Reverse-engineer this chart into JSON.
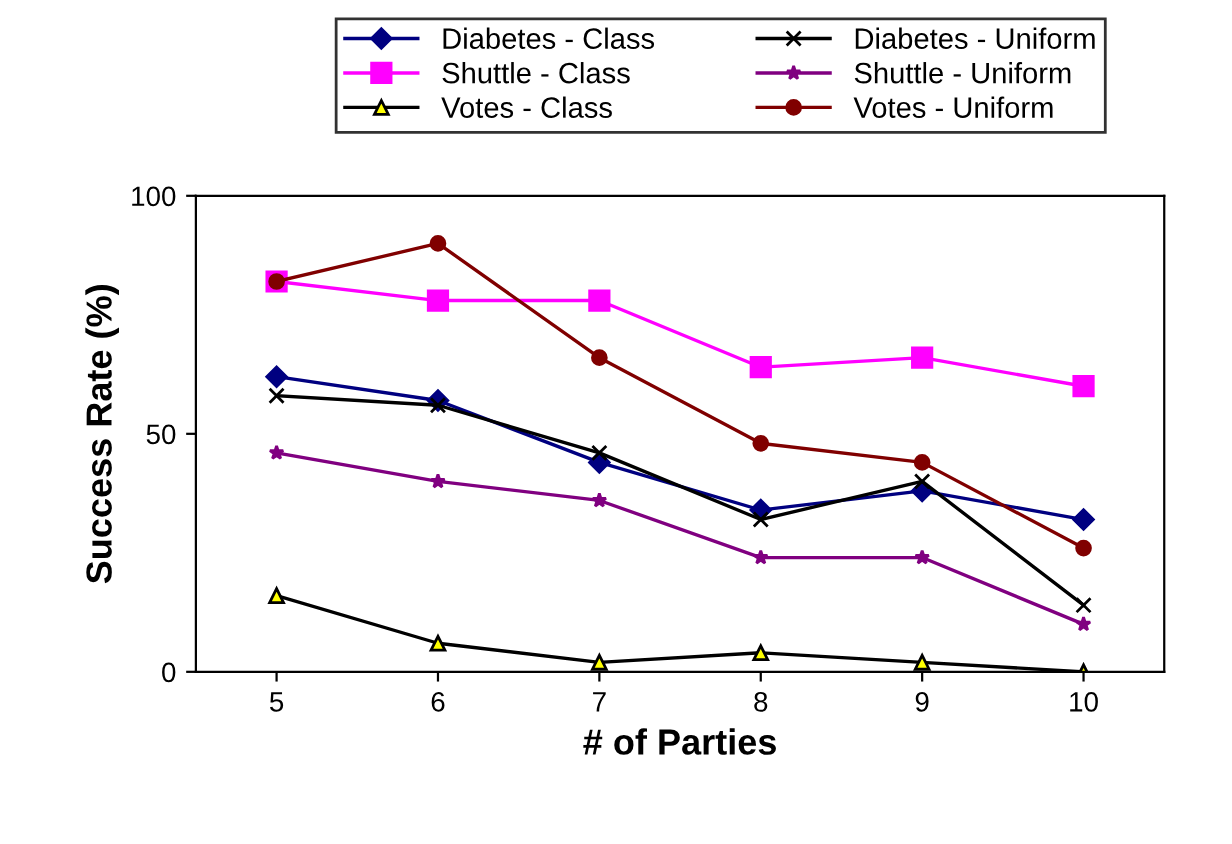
{
  "chart_data": {
    "type": "line",
    "xlabel": "# of Parties",
    "ylabel": "Success Rate (%)",
    "categories": [
      "5",
      "6",
      "7",
      "8",
      "9",
      "10"
    ],
    "ylim": [
      0,
      100
    ],
    "yticks": [
      0,
      50,
      100
    ],
    "grid": false,
    "legend": "top",
    "series": [
      {
        "name": "Diabetes - Class",
        "color": "#000080",
        "marker": "diamond",
        "values": [
          62,
          57,
          44,
          34,
          38,
          32
        ]
      },
      {
        "name": "Shuttle - Class",
        "color": "#ff00ff",
        "marker": "square",
        "values": [
          82,
          78,
          78,
          64,
          66,
          60
        ]
      },
      {
        "name": "Votes - Class",
        "color": "#ffff00",
        "marker": "triangle",
        "values": [
          16,
          6,
          2,
          4,
          2,
          0
        ]
      },
      {
        "name": "Diabetes - Uniform",
        "color": "#000000",
        "marker": "cross",
        "values": [
          58,
          56,
          46,
          32,
          40,
          14
        ]
      },
      {
        "name": "Shuttle - Uniform",
        "color": "#800080",
        "marker": "star",
        "values": [
          46,
          40,
          36,
          24,
          24,
          10
        ]
      },
      {
        "name": "Votes - Uniform",
        "color": "#800000",
        "marker": "circle",
        "values": [
          82,
          90,
          66,
          48,
          44,
          26
        ]
      }
    ]
  }
}
